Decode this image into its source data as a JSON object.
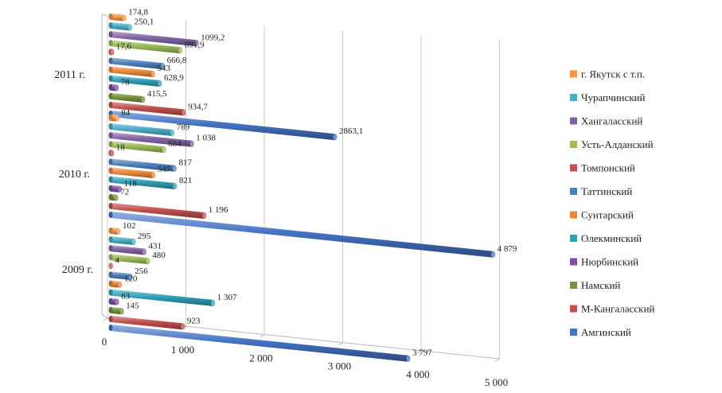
{
  "chart_data": {
    "type": "bar",
    "orientation": "horizontal",
    "three_d": true,
    "grid": true,
    "legend_position": "right",
    "title": "",
    "xlabel": "",
    "ylabel": "",
    "xlim": [
      0,
      5000
    ],
    "x_ticks": [
      "0",
      "1 000",
      "2 000",
      "3 000",
      "4 000",
      "5 000"
    ],
    "categories": [
      "2009 г.",
      "2010 г.",
      "2011 г."
    ],
    "series": [
      {
        "name": "Амгинский",
        "color": "#4472C4",
        "values": [
          3797,
          4879,
          2863.1
        ],
        "labels": [
          "3 797",
          "4 879",
          "2863,1"
        ]
      },
      {
        "name": "М-Кангаласский",
        "color": "#C0504D",
        "values": [
          923,
          1196,
          934.7
        ],
        "labels": [
          "923",
          "1 196",
          "934,7"
        ]
      },
      {
        "name": "Намский",
        "color": "#77933C",
        "values": [
          145,
          72,
          415.5
        ],
        "labels": [
          "145",
          "72",
          "415,5"
        ]
      },
      {
        "name": "Нюрбинский",
        "color": "#7F4FA5",
        "values": [
          83,
          118,
          78
        ],
        "labels": [
          "83",
          "118",
          "78"
        ]
      },
      {
        "name": "Олекминский",
        "color": "#31A0B7",
        "values": [
          1307,
          821,
          628.9
        ],
        "labels": [
          "1 307",
          "821",
          "628,9"
        ]
      },
      {
        "name": "Сунтарский",
        "color": "#E9883A",
        "values": [
          120,
          547,
          543
        ],
        "labels": [
          "120",
          "547",
          "543"
        ]
      },
      {
        "name": "Таттинский",
        "color": "#4F81BD",
        "values": [
          256,
          817,
          666.8
        ],
        "labels": [
          "256",
          "817",
          "666,8"
        ]
      },
      {
        "name": "Томпонский",
        "color": "#C0504D",
        "values": [
          4,
          18,
          17.6
        ],
        "labels": [
          "4",
          "18",
          "17,6"
        ]
      },
      {
        "name": "Усть-Алданский",
        "color": "#9BBB59",
        "values": [
          480,
          684,
          891.9
        ],
        "labels": [
          "480",
          "684",
          "891,9"
        ]
      },
      {
        "name": "Хангаласский",
        "color": "#8064A2",
        "values": [
          431,
          1038,
          1099.2
        ],
        "labels": [
          "431",
          "1 038",
          "1099,2"
        ]
      },
      {
        "name": "Чурапчинский",
        "color": "#4BACC6",
        "values": [
          295,
          789,
          250.1
        ],
        "labels": [
          "295",
          "789",
          "250,1"
        ]
      },
      {
        "name": "г. Якутск с т.п.",
        "color": "#F79646",
        "values": [
          102,
          84,
          174.8
        ],
        "labels": [
          "102",
          "84",
          "174,8"
        ]
      }
    ]
  }
}
